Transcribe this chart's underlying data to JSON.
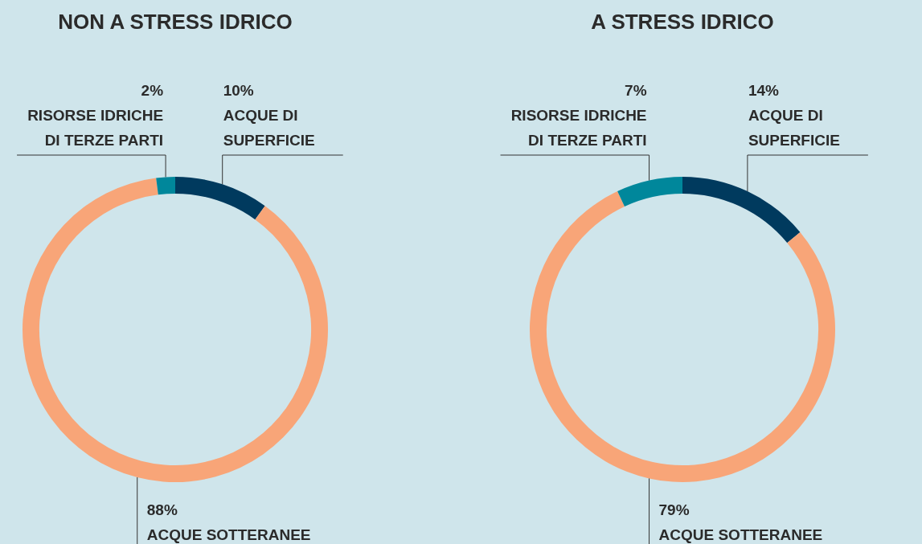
{
  "chart_data": [
    {
      "type": "donut",
      "title": "NON A STRESS IDRICO",
      "categories": [
        "ACQUE DI SUPERFICIE",
        "ACQUE SOTTERANEE",
        "RISORSE IDRICHE DI TERZE PARTI"
      ],
      "values": [
        10,
        88,
        2
      ],
      "value_labels": [
        "10%",
        "88%",
        "2%"
      ],
      "colors": [
        "#003a5e",
        "#f8a578",
        "#00879b"
      ],
      "legend": false
    },
    {
      "type": "donut",
      "title": "A STRESS IDRICO",
      "categories": [
        "ACQUE DI SUPERFICIE",
        "ACQUE SOTTERANEE",
        "RISORSE IDRICHE DI TERZE PARTI"
      ],
      "values": [
        14,
        79,
        7
      ],
      "value_labels": [
        "14%",
        "79%",
        "7%"
      ],
      "colors": [
        "#003a5e",
        "#f8a578",
        "#00879b"
      ],
      "legend": false
    }
  ]
}
